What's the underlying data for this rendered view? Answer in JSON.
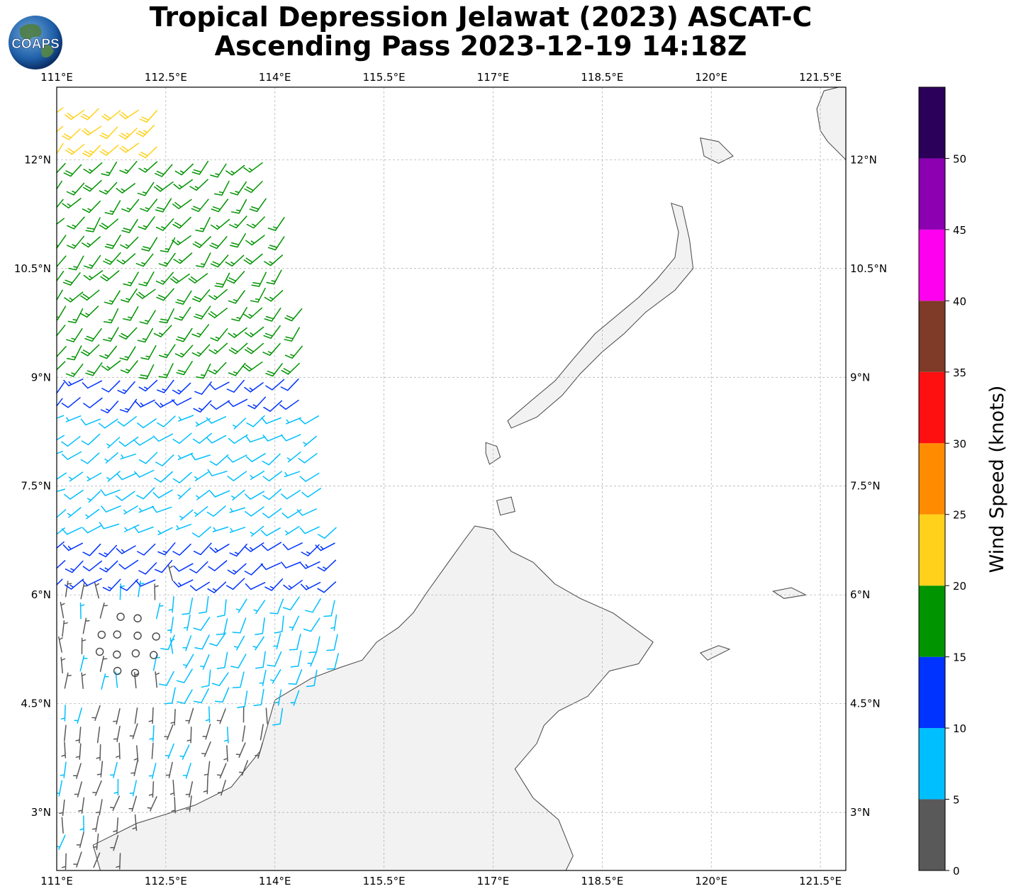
{
  "title": {
    "line1": "Tropical Depression Jelawat (2023) ASCAT-C",
    "line2": "Ascending Pass 2023-12-19 14:18Z"
  },
  "logo": {
    "text": "COAPS",
    "icon": "globe-logo-icon"
  },
  "map": {
    "lon_range": [
      111.0,
      121.85
    ],
    "lat_range": [
      2.2,
      13.0
    ],
    "lon_ticks": [
      {
        "value": 111.0,
        "label": "111°E"
      },
      {
        "value": 112.5,
        "label": "112.5°E"
      },
      {
        "value": 114.0,
        "label": "114°E"
      },
      {
        "value": 115.5,
        "label": "115.5°E"
      },
      {
        "value": 117.0,
        "label": "117°E"
      },
      {
        "value": 118.5,
        "label": "118.5°E"
      },
      {
        "value": 120.0,
        "label": "120°E"
      },
      {
        "value": 121.5,
        "label": "121.5°E"
      }
    ],
    "lat_ticks": [
      {
        "value": 12.0,
        "label": "12°N"
      },
      {
        "value": 10.5,
        "label": "10.5°N"
      },
      {
        "value": 9.0,
        "label": "9°N"
      },
      {
        "value": 7.5,
        "label": "7.5°N"
      },
      {
        "value": 6.0,
        "label": "6°N"
      },
      {
        "value": 4.5,
        "label": "4.5°N"
      },
      {
        "value": 3.0,
        "label": "3°N"
      }
    ],
    "gridlines": true,
    "land_color": "#f2f2f2",
    "coast_color": "#444444",
    "landmasses": [
      {
        "name": "borneo",
        "coords": [
          [
            114.0,
            4.55
          ],
          [
            114.5,
            4.85
          ],
          [
            114.9,
            5.0
          ],
          [
            115.2,
            5.1
          ],
          [
            115.4,
            5.35
          ],
          [
            115.7,
            5.55
          ],
          [
            115.9,
            5.75
          ],
          [
            116.1,
            6.05
          ],
          [
            116.35,
            6.4
          ],
          [
            116.6,
            6.75
          ],
          [
            116.75,
            6.95
          ],
          [
            117.0,
            6.9
          ],
          [
            117.25,
            6.6
          ],
          [
            117.55,
            6.45
          ],
          [
            117.85,
            6.15
          ],
          [
            118.2,
            5.95
          ],
          [
            118.65,
            5.75
          ],
          [
            119.2,
            5.35
          ],
          [
            119.0,
            5.05
          ],
          [
            118.6,
            4.95
          ],
          [
            118.3,
            4.6
          ],
          [
            117.9,
            4.4
          ],
          [
            117.7,
            4.2
          ],
          [
            117.6,
            3.95
          ],
          [
            117.3,
            3.6
          ],
          [
            117.55,
            3.2
          ],
          [
            117.9,
            2.9
          ],
          [
            118.1,
            2.4
          ],
          [
            118.0,
            2.2
          ],
          [
            113.8,
            2.2
          ],
          [
            112.5,
            2.2
          ],
          [
            111.6,
            2.2
          ],
          [
            111.5,
            2.55
          ],
          [
            112.1,
            2.85
          ],
          [
            112.9,
            3.1
          ],
          [
            113.4,
            3.35
          ],
          [
            113.8,
            3.85
          ]
        ]
      },
      {
        "name": "palawan",
        "coords": [
          [
            117.2,
            8.4
          ],
          [
            117.55,
            8.7
          ],
          [
            117.85,
            8.95
          ],
          [
            118.1,
            9.25
          ],
          [
            118.4,
            9.6
          ],
          [
            118.7,
            9.85
          ],
          [
            119.0,
            10.1
          ],
          [
            119.25,
            10.35
          ],
          [
            119.5,
            10.65
          ],
          [
            119.55,
            11.0
          ],
          [
            119.45,
            11.4
          ],
          [
            119.6,
            11.35
          ],
          [
            119.7,
            10.9
          ],
          [
            119.75,
            10.5
          ],
          [
            119.5,
            10.2
          ],
          [
            119.1,
            9.9
          ],
          [
            118.8,
            9.6
          ],
          [
            118.5,
            9.35
          ],
          [
            118.2,
            9.05
          ],
          [
            117.95,
            8.75
          ],
          [
            117.6,
            8.45
          ],
          [
            117.25,
            8.3
          ]
        ]
      },
      {
        "name": "panay",
        "coords": [
          [
            121.75,
            13.0
          ],
          [
            122.0,
            13.0
          ],
          [
            122.0,
            11.9
          ],
          [
            121.9,
            11.95
          ],
          [
            121.6,
            12.25
          ],
          [
            121.5,
            12.4
          ],
          [
            121.45,
            12.7
          ],
          [
            121.55,
            12.95
          ]
        ]
      },
      {
        "name": "busuanga",
        "coords": [
          [
            119.85,
            12.3
          ],
          [
            120.1,
            12.25
          ],
          [
            120.3,
            12.05
          ],
          [
            120.1,
            11.95
          ],
          [
            119.9,
            12.05
          ]
        ]
      },
      {
        "name": "balabac",
        "coords": [
          [
            116.9,
            8.1
          ],
          [
            117.05,
            8.05
          ],
          [
            117.1,
            7.9
          ],
          [
            116.95,
            7.8
          ],
          [
            116.9,
            7.95
          ]
        ]
      },
      {
        "name": "banggi",
        "coords": [
          [
            117.05,
            7.3
          ],
          [
            117.25,
            7.35
          ],
          [
            117.3,
            7.15
          ],
          [
            117.1,
            7.1
          ]
        ]
      },
      {
        "name": "tawitawi",
        "coords": [
          [
            119.85,
            5.2
          ],
          [
            120.1,
            5.3
          ],
          [
            120.25,
            5.25
          ],
          [
            119.95,
            5.1
          ]
        ]
      },
      {
        "name": "jolo",
        "coords": [
          [
            120.85,
            6.05
          ],
          [
            121.1,
            6.1
          ],
          [
            121.3,
            6.0
          ],
          [
            121.0,
            5.95
          ]
        ]
      }
    ]
  },
  "wind_swath": {
    "lon_west": 111.0,
    "east_edge": [
      [
        13.0,
        113.7
      ],
      [
        12.0,
        113.9
      ],
      [
        11.0,
        114.15
      ],
      [
        10.0,
        114.35
      ],
      [
        9.0,
        114.55
      ],
      [
        8.0,
        114.75
      ],
      [
        7.0,
        114.85
      ],
      [
        6.0,
        114.95
      ],
      [
        5.0,
        115.05
      ],
      [
        4.6,
        114.95
      ]
    ],
    "spacing_deg": 0.25,
    "zones": [
      {
        "lat_min": 9.0,
        "lat_max": 13.0,
        "lon_max": 112.5,
        "speed": 22,
        "dir_deg": 225
      },
      {
        "lat_min": 9.0,
        "lat_max": 12.0,
        "lon_max": 114.6,
        "speed": 17,
        "dir_deg": 220
      },
      {
        "lat_min": 8.0,
        "lat_max": 9.0,
        "lon_max": 114.6,
        "speed": 12,
        "dir_deg": 230
      },
      {
        "lat_min": 6.0,
        "lat_max": 8.0,
        "lon_max": 114.9,
        "speed": 12,
        "dir_deg": 235
      },
      {
        "lat_min": 6.8,
        "lat_max": 8.6,
        "lon_max": 114.9,
        "speed": 8,
        "dir_deg": 240
      },
      {
        "lat_min": 2.2,
        "lat_max": 6.0,
        "lon_max": 115.0,
        "speed": 8,
        "dir_deg": 200
      },
      {
        "lat_min": 4.5,
        "lat_max": 6.2,
        "lon_max": 112.6,
        "speed": 0,
        "dir_deg": 0
      },
      {
        "lat_min": 2.2,
        "lat_max": 4.5,
        "lon_max": 114.0,
        "speed": 4,
        "dir_deg": 190
      }
    ],
    "calm_center": [
      5.3,
      112.0
    ]
  },
  "colorbar": {
    "label": "Wind Speed (knots)",
    "bins": [
      {
        "min": 0,
        "max": 5,
        "color": "#595959"
      },
      {
        "min": 5,
        "max": 10,
        "color": "#00bfff"
      },
      {
        "min": 10,
        "max": 15,
        "color": "#0033ff"
      },
      {
        "min": 15,
        "max": 20,
        "color": "#009400"
      },
      {
        "min": 20,
        "max": 25,
        "color": "#ffd11a"
      },
      {
        "min": 25,
        "max": 30,
        "color": "#ff8c00"
      },
      {
        "min": 30,
        "max": 35,
        "color": "#ff1010"
      },
      {
        "min": 35,
        "max": 40,
        "color": "#7f3a28"
      },
      {
        "min": 40,
        "max": 45,
        "color": "#ff00ee"
      },
      {
        "min": 45,
        "max": 50,
        "color": "#8b00b0"
      },
      {
        "min": 50,
        "max": 55,
        "color": "#2b0059"
      }
    ],
    "ticks": [
      {
        "value": 0,
        "label": "0"
      },
      {
        "value": 5,
        "label": "5"
      },
      {
        "value": 10,
        "label": "10"
      },
      {
        "value": 15,
        "label": "15"
      },
      {
        "value": 20,
        "label": "20"
      },
      {
        "value": 25,
        "label": "25"
      },
      {
        "value": 30,
        "label": "30"
      },
      {
        "value": 35,
        "label": "35"
      },
      {
        "value": 40,
        "label": "40"
      },
      {
        "value": 45,
        "label": "45"
      },
      {
        "value": 50,
        "label": "50"
      }
    ]
  }
}
